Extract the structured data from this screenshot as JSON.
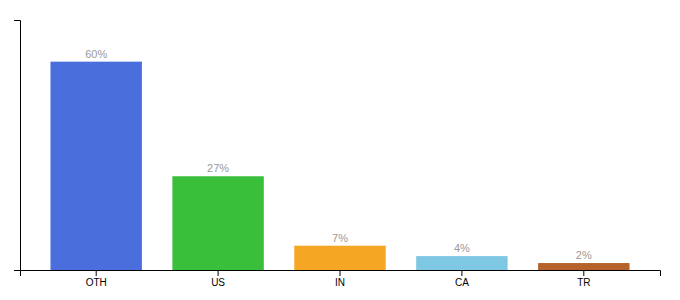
{
  "chart_data": {
    "type": "bar",
    "categories": [
      "OTH",
      "US",
      "IN",
      "CA",
      "TR"
    ],
    "values": [
      60,
      27,
      7,
      4,
      2
    ],
    "value_labels": [
      "60%",
      "27%",
      "7%",
      "4%",
      "2%"
    ],
    "data_labels": true,
    "colors": [
      "#4a6edb",
      "#3abf3a",
      "#f5a623",
      "#7ec8e3",
      "#b5622b"
    ],
    "ylim": [
      0,
      72
    ],
    "yticks": [],
    "tick_labels": "x"
  }
}
